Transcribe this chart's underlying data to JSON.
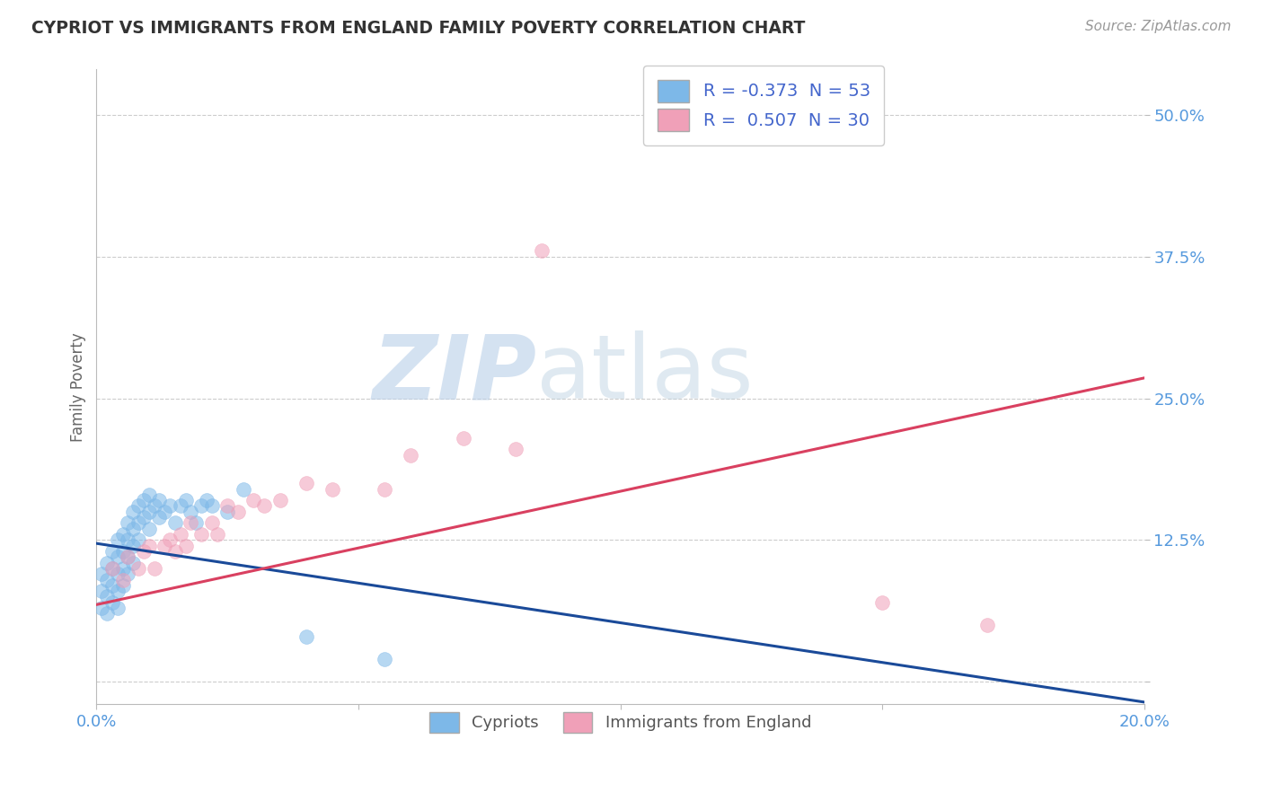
{
  "title": "CYPRIOT VS IMMIGRANTS FROM ENGLAND FAMILY POVERTY CORRELATION CHART",
  "source": "Source: ZipAtlas.com",
  "ylabel": "Family Poverty",
  "xlim": [
    0.0,
    0.2
  ],
  "ylim": [
    -0.02,
    0.54
  ],
  "yticks": [
    0.0,
    0.125,
    0.25,
    0.375,
    0.5
  ],
  "ytick_labels": [
    "",
    "12.5%",
    "25.0%",
    "37.5%",
    "50.0%"
  ],
  "xticks": [
    0.0,
    0.05,
    0.1,
    0.15,
    0.2
  ],
  "xtick_labels": [
    "0.0%",
    "",
    "",
    "",
    "20.0%"
  ],
  "blue_color": "#7db8e8",
  "pink_color": "#f0a0b8",
  "blue_line_color": "#1a4a99",
  "pink_line_color": "#d94060",
  "R_blue": -0.373,
  "N_blue": 53,
  "R_pink": 0.507,
  "N_pink": 30,
  "background_color": "#ffffff",
  "grid_color": "#cccccc",
  "blue_line_x0": 0.0,
  "blue_line_y0": 0.122,
  "blue_line_x1": 0.2,
  "blue_line_y1": -0.018,
  "pink_line_x0": 0.0,
  "pink_line_y0": 0.068,
  "pink_line_x1": 0.2,
  "pink_line_y1": 0.268,
  "blue_scatter_x": [
    0.001,
    0.001,
    0.001,
    0.002,
    0.002,
    0.002,
    0.002,
    0.003,
    0.003,
    0.003,
    0.003,
    0.004,
    0.004,
    0.004,
    0.004,
    0.004,
    0.005,
    0.005,
    0.005,
    0.005,
    0.006,
    0.006,
    0.006,
    0.006,
    0.007,
    0.007,
    0.007,
    0.007,
    0.008,
    0.008,
    0.008,
    0.009,
    0.009,
    0.01,
    0.01,
    0.01,
    0.011,
    0.012,
    0.012,
    0.013,
    0.014,
    0.015,
    0.016,
    0.017,
    0.018,
    0.019,
    0.02,
    0.021,
    0.022,
    0.025,
    0.028,
    0.04,
    0.055
  ],
  "blue_scatter_y": [
    0.095,
    0.08,
    0.065,
    0.105,
    0.09,
    0.075,
    0.06,
    0.115,
    0.1,
    0.085,
    0.07,
    0.125,
    0.11,
    0.095,
    0.08,
    0.065,
    0.13,
    0.115,
    0.1,
    0.085,
    0.14,
    0.125,
    0.11,
    0.095,
    0.15,
    0.135,
    0.12,
    0.105,
    0.155,
    0.14,
    0.125,
    0.16,
    0.145,
    0.165,
    0.15,
    0.135,
    0.155,
    0.16,
    0.145,
    0.15,
    0.155,
    0.14,
    0.155,
    0.16,
    0.15,
    0.14,
    0.155,
    0.16,
    0.155,
    0.15,
    0.17,
    0.04,
    0.02
  ],
  "pink_scatter_x": [
    0.003,
    0.005,
    0.006,
    0.008,
    0.009,
    0.01,
    0.011,
    0.013,
    0.014,
    0.015,
    0.016,
    0.017,
    0.018,
    0.02,
    0.022,
    0.023,
    0.025,
    0.027,
    0.03,
    0.032,
    0.035,
    0.04,
    0.045,
    0.055,
    0.06,
    0.07,
    0.08,
    0.085,
    0.15,
    0.17
  ],
  "pink_scatter_y": [
    0.1,
    0.09,
    0.11,
    0.1,
    0.115,
    0.12,
    0.1,
    0.12,
    0.125,
    0.115,
    0.13,
    0.12,
    0.14,
    0.13,
    0.14,
    0.13,
    0.155,
    0.15,
    0.16,
    0.155,
    0.16,
    0.175,
    0.17,
    0.17,
    0.2,
    0.215,
    0.205,
    0.38,
    0.07,
    0.05
  ]
}
